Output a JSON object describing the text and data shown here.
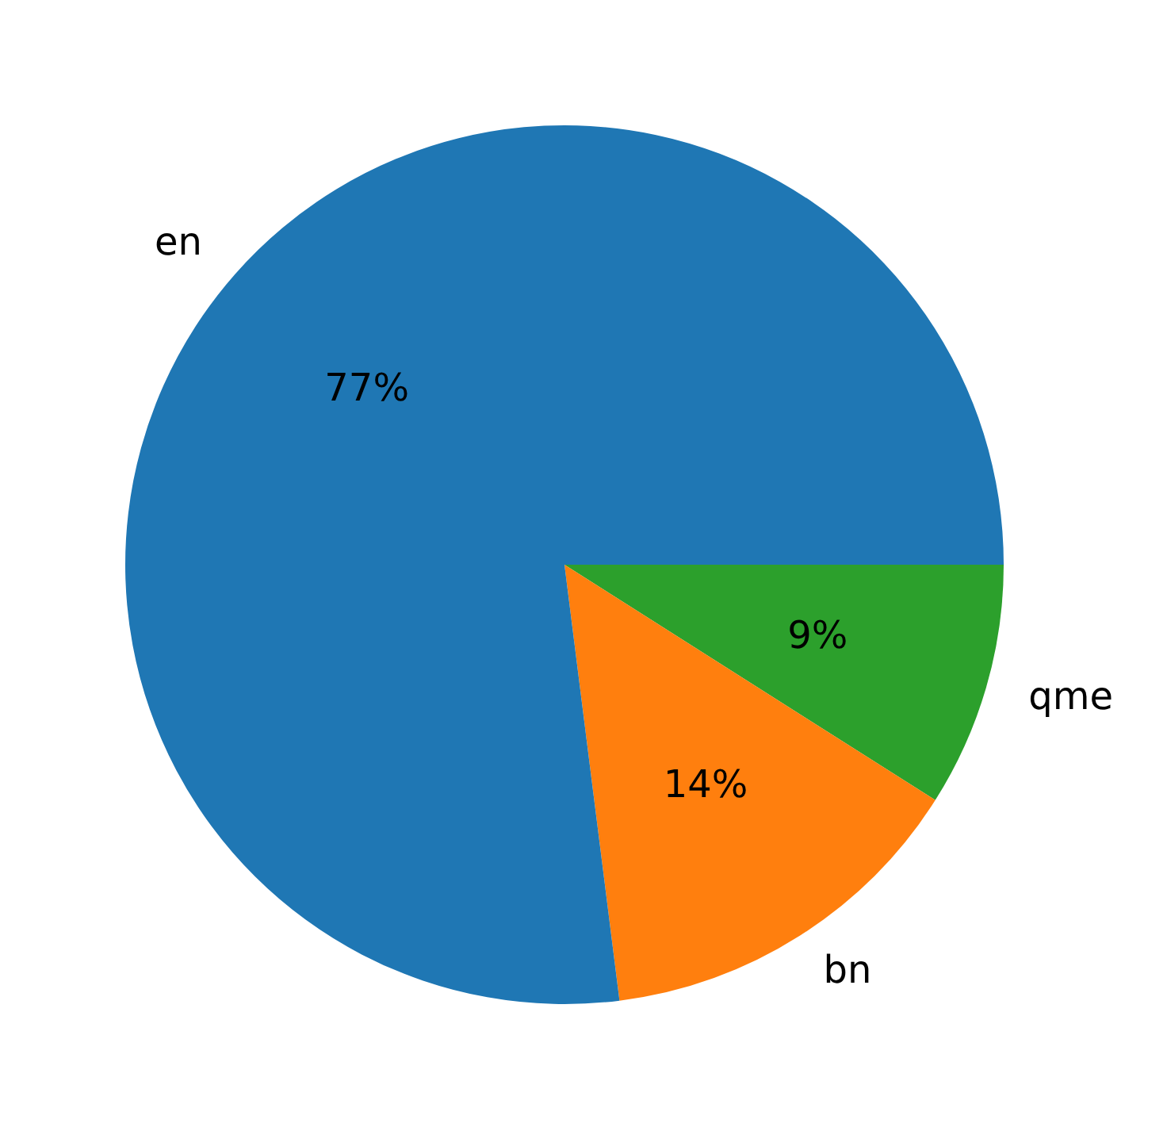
{
  "chart_data": {
    "type": "pie",
    "categories": [
      "en",
      "bn",
      "qme"
    ],
    "values": [
      77,
      14,
      9
    ],
    "colors": [
      "#1f77b4",
      "#ff7f0e",
      "#2ca02c"
    ],
    "value_labels": [
      "77%",
      "14%",
      "9%"
    ],
    "legend": false
  }
}
